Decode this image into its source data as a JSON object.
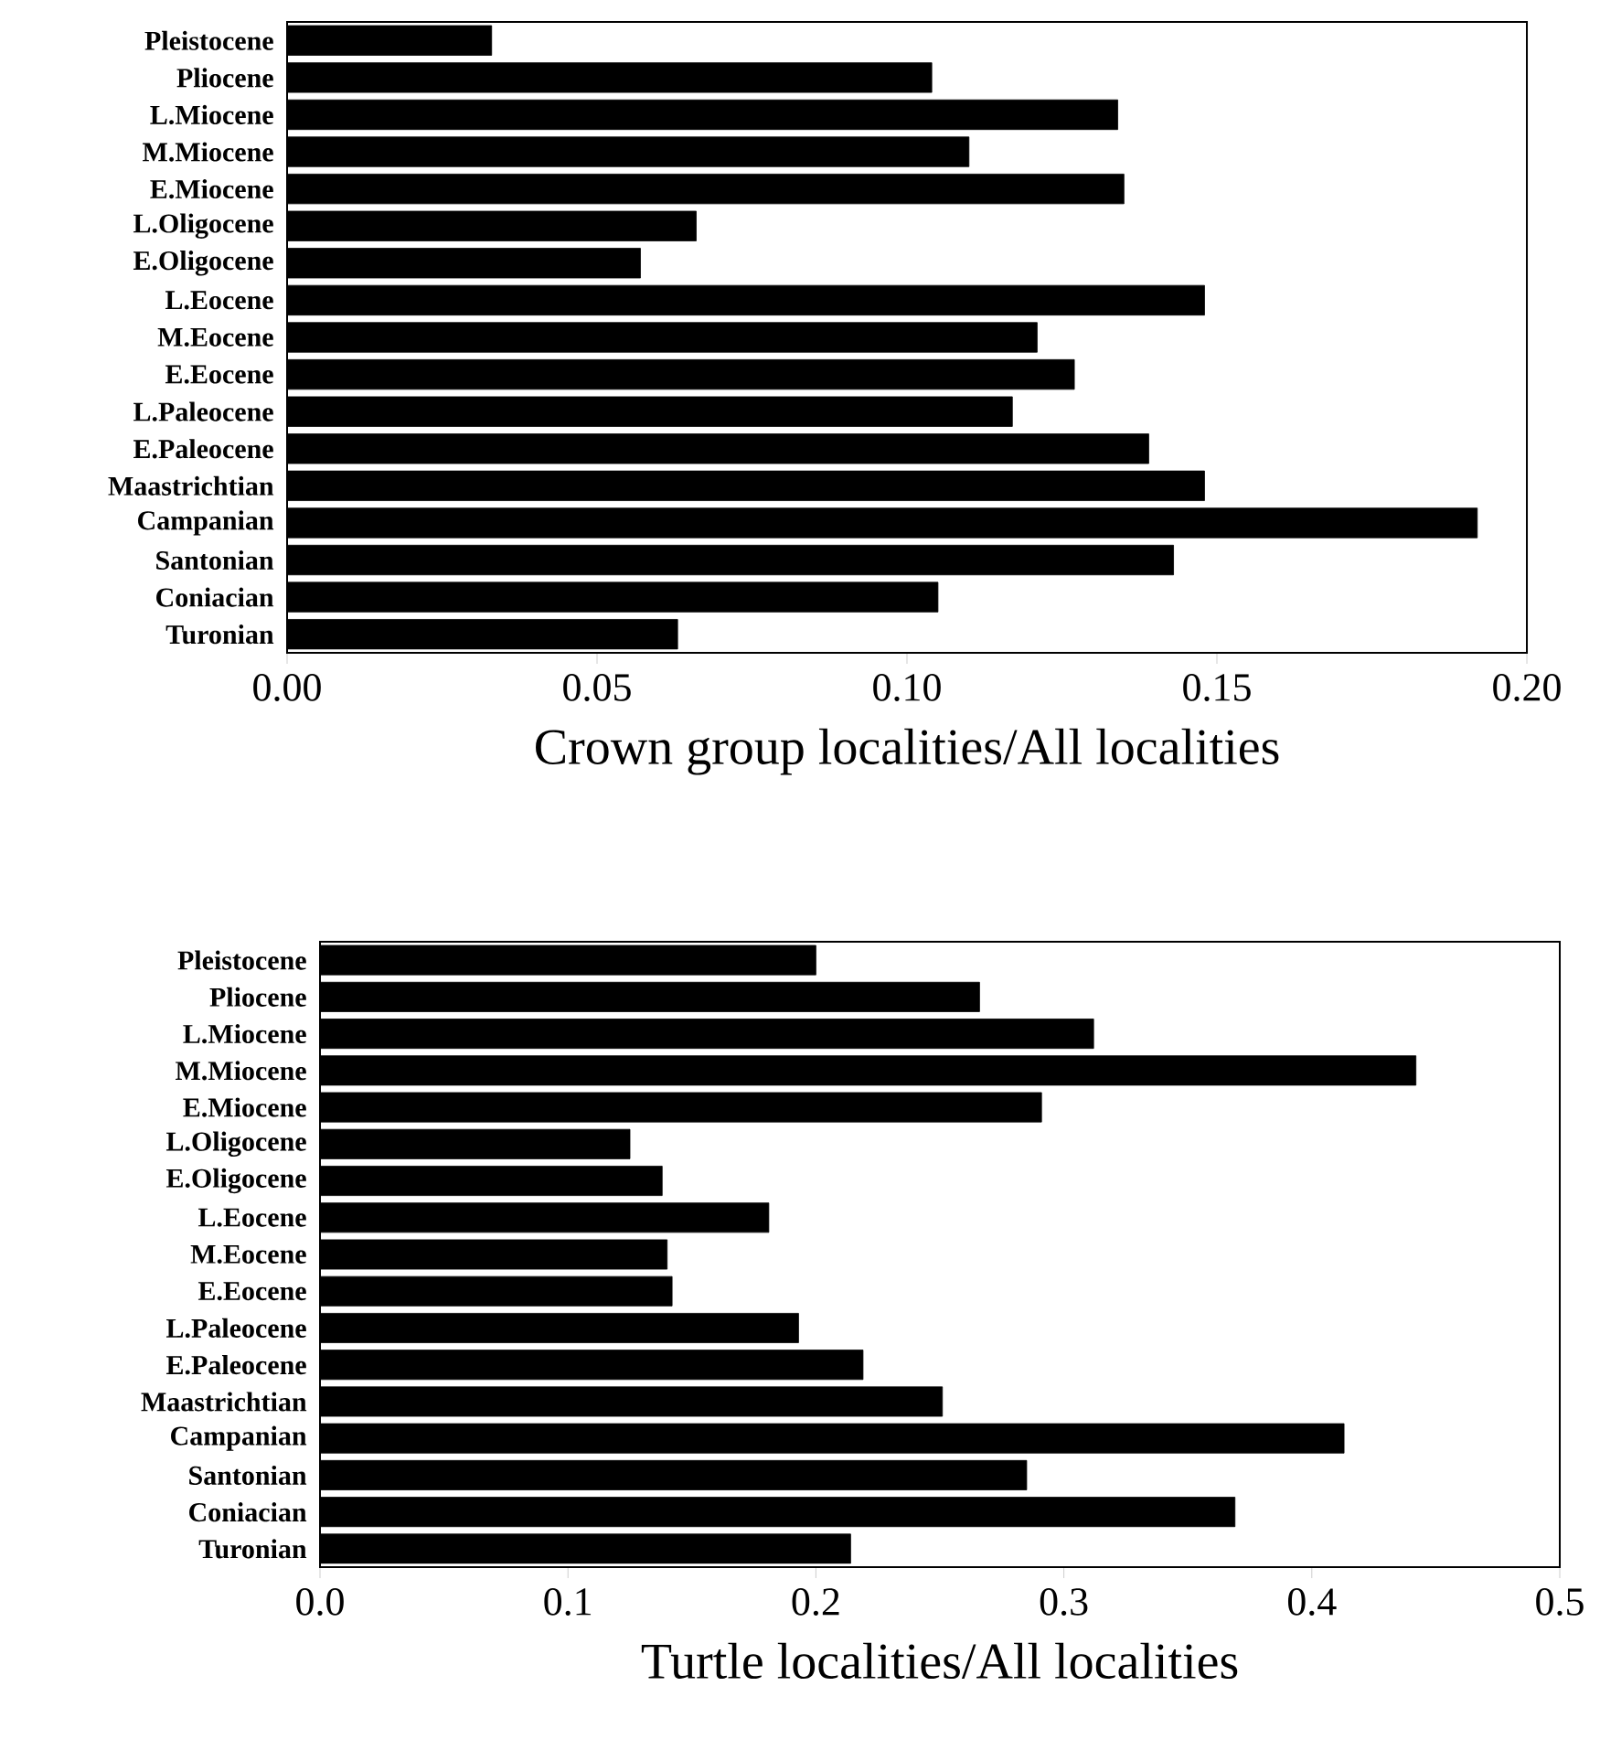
{
  "chart_data": [
    {
      "type": "bar",
      "orientation": "horizontal",
      "color": "#000000",
      "xlabel": "Crown group localities/All localities",
      "categories": [
        "Pleistocene",
        "Pliocene",
        "L.Miocene",
        "M.Miocene",
        "E.Miocene",
        "L.Oligocene",
        "E.Oligocene",
        "L.Eocene",
        "M.Eocene",
        "E.Eocene",
        "L.Paleocene",
        "E.Paleocene",
        "Maastrichtian",
        "Campanian",
        "Santonian",
        "Coniacian",
        "Turonian"
      ],
      "values": [
        0.033,
        0.104,
        0.134,
        0.11,
        0.135,
        0.066,
        0.057,
        0.148,
        0.121,
        0.127,
        0.117,
        0.139,
        0.148,
        0.192,
        0.143,
        0.105,
        0.063
      ],
      "xlim": [
        0,
        0.2
      ],
      "xticks": [
        {
          "value": 0,
          "label": "0.00"
        },
        {
          "value": 0.05,
          "label": "0.05"
        },
        {
          "value": 0.1,
          "label": "0.10"
        },
        {
          "value": 0.15,
          "label": "0.15"
        },
        {
          "value": 0.2,
          "label": "0.20"
        }
      ]
    },
    {
      "type": "bar",
      "orientation": "horizontal",
      "color": "#000000",
      "xlabel": "Turtle localities/All localities",
      "categories": [
        "Pleistocene",
        "Pliocene",
        "L.Miocene",
        "M.Miocene",
        "E.Miocene",
        "L.Oligocene",
        "E.Oligocene",
        "L.Eocene",
        "M.Eocene",
        "E.Eocene",
        "L.Paleocene",
        "E.Paleocene",
        "Maastrichtian",
        "Campanian",
        "Santonian",
        "Coniacian",
        "Turonian"
      ],
      "values": [
        0.2,
        0.266,
        0.312,
        0.442,
        0.291,
        0.125,
        0.138,
        0.181,
        0.14,
        0.142,
        0.193,
        0.219,
        0.251,
        0.413,
        0.285,
        0.369,
        0.214
      ],
      "xlim": [
        0,
        0.5
      ],
      "xticks": [
        {
          "value": 0,
          "label": "0.0"
        },
        {
          "value": 0.1,
          "label": "0.1"
        },
        {
          "value": 0.2,
          "label": "0.2"
        },
        {
          "value": 0.3,
          "label": "0.3"
        },
        {
          "value": 0.4,
          "label": "0.4"
        },
        {
          "value": 0.5,
          "label": "0.5"
        }
      ]
    }
  ]
}
